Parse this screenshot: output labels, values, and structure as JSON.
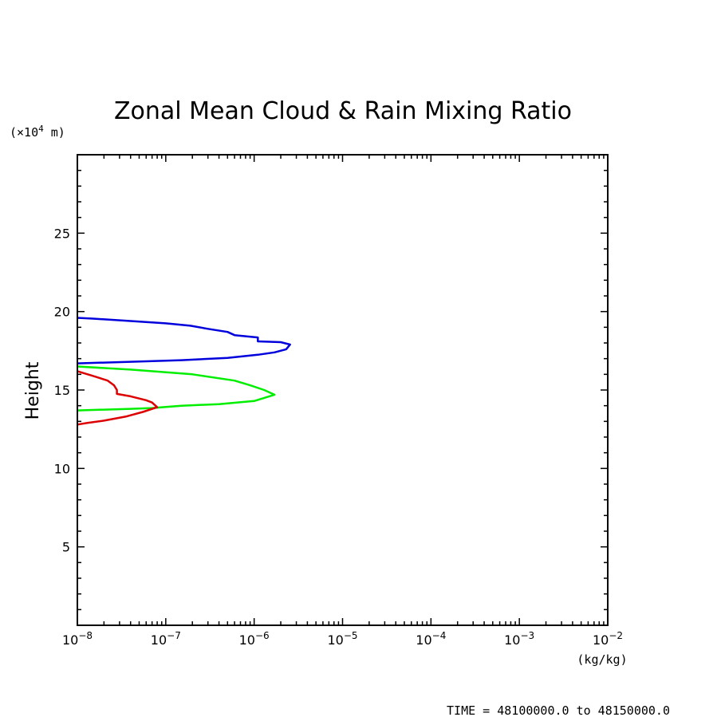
{
  "chart_data": {
    "type": "line",
    "title": "Zonal Mean Cloud & Rain Mixing Ratio",
    "ylabel": "Height",
    "y_unit_prefix": "(×10",
    "y_unit_exp": "4",
    "y_unit_suffix": " m)",
    "x_unit": "(kg/kg)",
    "footer": "TIME = 48100000.0 to 48150000.0",
    "x_scale": "log",
    "xlim": [
      1e-08,
      0.01
    ],
    "ylim": [
      0,
      30
    ],
    "x_ticks": [
      {
        "exp": -8,
        "label": "−8"
      },
      {
        "exp": -7,
        "label": "−7"
      },
      {
        "exp": -6,
        "label": "−6"
      },
      {
        "exp": -5,
        "label": "−5"
      },
      {
        "exp": -4,
        "label": "−4"
      },
      {
        "exp": -3,
        "label": "−3"
      },
      {
        "exp": -2,
        "label": "−2"
      }
    ],
    "x_tick_base": "10",
    "y_ticks": [
      {
        "value": 5,
        "label": "5"
      },
      {
        "value": 10,
        "label": "10"
      },
      {
        "value": 15,
        "label": "15"
      },
      {
        "value": 20,
        "label": "20"
      },
      {
        "value": 25,
        "label": "25"
      }
    ],
    "series": [
      {
        "color": "#0000dd",
        "points": [
          [
            1e-08,
            19.6
          ],
          [
            1.5e-08,
            19.55
          ],
          [
            4e-08,
            19.4
          ],
          [
            1e-07,
            19.25
          ],
          [
            1.9e-07,
            19.1
          ],
          [
            3e-07,
            18.9
          ],
          [
            5e-07,
            18.7
          ],
          [
            6e-07,
            18.5
          ],
          [
            1.1e-06,
            18.35
          ],
          [
            1.1e-06,
            18.1
          ],
          [
            2e-06,
            18.05
          ],
          [
            2.55e-06,
            17.9
          ],
          [
            2.3e-06,
            17.6
          ],
          [
            1.7e-06,
            17.4
          ],
          [
            1.1e-06,
            17.25
          ],
          [
            5e-07,
            17.05
          ],
          [
            1.5e-07,
            16.9
          ],
          [
            4e-08,
            16.8
          ],
          [
            1e-08,
            16.7
          ]
        ]
      },
      {
        "color": "#00ee00",
        "points": [
          [
            1e-08,
            16.5
          ],
          [
            4e-08,
            16.3
          ],
          [
            2e-07,
            16.0
          ],
          [
            6e-07,
            15.6
          ],
          [
            9e-07,
            15.3
          ],
          [
            1.3e-06,
            15.0
          ],
          [
            1.7e-06,
            14.7
          ],
          [
            1e-06,
            14.3
          ],
          [
            4e-07,
            14.1
          ],
          [
            1.5e-07,
            14.0
          ],
          [
            7e-08,
            13.85
          ],
          [
            4e-08,
            13.8
          ],
          [
            1e-08,
            13.7
          ]
        ]
      },
      {
        "color": "#dd0000",
        "points": [
          [
            1e-08,
            16.2
          ],
          [
            1.5e-08,
            15.9
          ],
          [
            2.2e-08,
            15.6
          ],
          [
            2.6e-08,
            15.3
          ],
          [
            2.8e-08,
            15.0
          ],
          [
            2.8e-08,
            14.75
          ],
          [
            4e-08,
            14.6
          ],
          [
            6e-08,
            14.35
          ],
          [
            7e-08,
            14.2
          ],
          [
            8e-08,
            13.9
          ],
          [
            5.5e-08,
            13.6
          ],
          [
            3.5e-08,
            13.3
          ],
          [
            2e-08,
            13.05
          ],
          [
            1.3e-08,
            12.9
          ],
          [
            1e-08,
            12.8
          ]
        ]
      }
    ]
  }
}
